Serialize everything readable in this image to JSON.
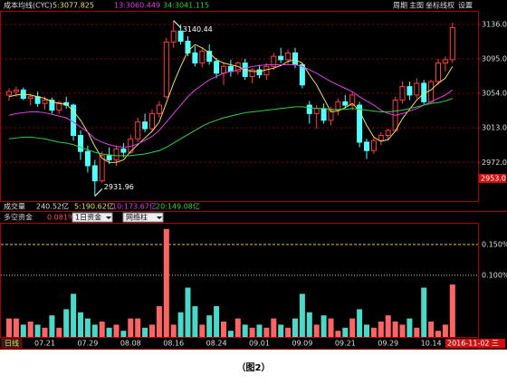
{
  "chart_data": [
    {
      "type": "candlestick",
      "title": "成本均线(CYC)",
      "toolbar": [
        "周期",
        "主图",
        "坐标线",
        "权",
        "设置"
      ],
      "open": [
        3052,
        3056,
        3058,
        3048,
        3050,
        3042,
        3046,
        3034,
        3043,
        3040,
        3004,
        2985,
        2968,
        2950,
        2980,
        2975,
        2988,
        2984,
        3000,
        3020,
        3012,
        3030,
        3050,
        3115,
        3128,
        3116,
        3102,
        3090,
        3104,
        3092,
        3078,
        3086,
        3080,
        3090,
        3074,
        3082,
        3076,
        3086,
        3098,
        3094,
        3102,
        3088,
        3040,
        3030,
        3036,
        3022,
        3034,
        3044,
        3040,
        3040,
        2996,
        2986,
        2998,
        3004,
        3010,
        3046,
        3062,
        3052,
        3066,
        3044,
        3068,
        3090,
        3094
      ],
      "high": [
        3060,
        3062,
        3061,
        3054,
        3056,
        3050,
        3049,
        3045,
        3050,
        3042,
        3010,
        2992,
        2975,
        2985,
        2990,
        2992,
        2995,
        3005,
        3025,
        3030,
        3035,
        3045,
        3120,
        3140.44,
        3136,
        3122,
        3110,
        3108,
        3112,
        3096,
        3090,
        3094,
        3092,
        3095,
        3084,
        3088,
        3090,
        3102,
        3108,
        3106,
        3108,
        3090,
        3045,
        3040,
        3042,
        3038,
        3048,
        3052,
        3056,
        3044,
        3000,
        3002,
        3008,
        3012,
        3050,
        3068,
        3068,
        3072,
        3070,
        3070,
        3095,
        3098,
        3138
      ],
      "low": [
        3045,
        3050,
        3046,
        3040,
        3038,
        3035,
        3030,
        3030,
        3036,
        2998,
        2975,
        2960,
        2931.96,
        2948,
        2970,
        2968,
        2978,
        2982,
        2996,
        3008,
        3008,
        3025,
        3048,
        3108,
        3112,
        3098,
        3086,
        3085,
        3088,
        3072,
        3064,
        3074,
        3076,
        3070,
        3066,
        3072,
        3070,
        3082,
        3090,
        3088,
        3084,
        3060,
        3018,
        3012,
        3018,
        3016,
        3028,
        3036,
        3034,
        2990,
        2976,
        2982,
        2992,
        2998,
        3008,
        3042,
        3046,
        3048,
        3040,
        3042,
        3064,
        3080,
        3090
      ],
      "close": [
        3056,
        3058,
        3048,
        3050,
        3042,
        3046,
        3034,
        3043,
        3040,
        3004,
        2985,
        2968,
        2950,
        2980,
        2975,
        2988,
        2984,
        3000,
        3020,
        3012,
        3030,
        3040,
        3115,
        3128,
        3116,
        3102,
        3090,
        3104,
        3092,
        3078,
        3086,
        3080,
        3090,
        3074,
        3082,
        3076,
        3086,
        3098,
        3094,
        3102,
        3088,
        3064,
        3030,
        3036,
        3022,
        3034,
        3044,
        3040,
        3052,
        2996,
        2986,
        2998,
        3004,
        3010,
        3046,
        3062,
        3052,
        3066,
        3044,
        3068,
        3090,
        3094,
        3132
      ],
      "up_color": "#ff3c3c",
      "down_color": "#54ffff",
      "series": [
        {
          "name": "5:3077.825",
          "color": "#e8e070",
          "values": [
            3050,
            3052,
            3053,
            3052,
            3050,
            3048,
            3044,
            3042,
            3041,
            3033,
            3022,
            3008,
            2991,
            2977,
            2972,
            2972,
            2975,
            2985,
            2993,
            3001,
            3009,
            3020,
            3043,
            3066,
            3086,
            3104,
            3112,
            3108,
            3102,
            3094,
            3090,
            3088,
            3086,
            3082,
            3080,
            3080,
            3082,
            3084,
            3087,
            3092,
            3094,
            3090,
            3076,
            3064,
            3048,
            3032,
            3033,
            3037,
            3042,
            3033,
            3016,
            3002,
            2997,
            2999,
            3009,
            3024,
            3035,
            3046,
            3054,
            3058,
            3066,
            3072,
            3086
          ]
        },
        {
          "name": "13:3060.449",
          "color": "#e040e0",
          "values": [
            3028,
            3030,
            3031,
            3032,
            3032,
            3031,
            3029,
            3027,
            3025,
            3020,
            3014,
            3008,
            3000,
            2996,
            2993,
            2991,
            2990,
            2991,
            2994,
            2998,
            3003,
            3010,
            3020,
            3030,
            3040,
            3050,
            3058,
            3064,
            3070,
            3074,
            3078,
            3080,
            3082,
            3084,
            3086,
            3087,
            3088,
            3088,
            3088,
            3088,
            3088,
            3086,
            3082,
            3078,
            3073,
            3068,
            3064,
            3060,
            3056,
            3050,
            3045,
            3040,
            3034,
            3030,
            3028,
            3030,
            3033,
            3036,
            3040,
            3044,
            3048,
            3052,
            3058
          ]
        },
        {
          "name": "34:3041.115",
          "color": "#30d040",
          "values": [
            3000,
            3001,
            3002,
            3002,
            3001,
            3000,
            2998,
            2996,
            2995,
            2993,
            2990,
            2987,
            2984,
            2982,
            2981,
            2980,
            2980,
            2980,
            2981,
            2982,
            2984,
            2986,
            2990,
            2995,
            3000,
            3005,
            3010,
            3015,
            3019,
            3022,
            3025,
            3027,
            3029,
            3031,
            3032,
            3033,
            3034,
            3035,
            3036,
            3037,
            3038,
            3038,
            3037,
            3036,
            3036,
            3035,
            3035,
            3035,
            3036,
            3035,
            3034,
            3033,
            3032,
            3032,
            3033,
            3034,
            3036,
            3038,
            3040,
            3042,
            3043,
            3045,
            3048
          ]
        }
      ],
      "ylim": [
        2926,
        3152
      ],
      "yticks": [
        {
          "value": 3136,
          "label": "3136.0"
        },
        {
          "value": 3095,
          "label": "3095.0"
        },
        {
          "value": 3054,
          "label": "3054.0"
        },
        {
          "value": 3013,
          "label": "3013.0"
        },
        {
          "value": 2972,
          "label": "2972.0"
        }
      ],
      "cursor": {
        "value": 2953,
        "label": "2953.0"
      },
      "grid": true
    },
    {
      "type": "bar",
      "volume_header": [
        "成交量",
        "240.52亿",
        "5:190.62亿",
        "10:173.67亿",
        "20:149.08亿"
      ],
      "title": "多空资金",
      "current": "0.081%",
      "selectors": [
        "1日资金",
        "网络柱"
      ],
      "values": [
        0.03,
        0.03,
        0.02,
        0.025,
        0.02,
        0.015,
        0.035,
        0.015,
        0.045,
        0.07,
        0.04,
        0.03,
        0.02,
        0.025,
        0.015,
        0.02,
        0.01,
        0.03,
        0.03,
        0.015,
        0.02,
        0.05,
        0.175,
        0.02,
        0.04,
        0.08,
        0.05,
        0.02,
        0.035,
        0.05,
        0.025,
        0.01,
        0.03,
        0.02,
        0.015,
        0.02,
        0.015,
        0.03,
        0.02,
        0.015,
        0.03,
        0.07,
        0.04,
        0.02,
        0.035,
        0.03,
        0.01,
        0.015,
        0.03,
        0.045,
        0.02,
        0.015,
        0.025,
        0.035,
        0.025,
        0.02,
        0.03,
        0.015,
        0.08,
        0.025,
        0.01,
        0.02,
        0.085
      ],
      "up_color": "#ff6464",
      "down_color": "#4cd8c8",
      "ylim": [
        0,
        0.185
      ],
      "yticks": [
        {
          "value": 0.15,
          "label": "0.150%"
        },
        {
          "value": 0.1,
          "label": "0.100%"
        }
      ],
      "categories": [
        null,
        null,
        null,
        null,
        null,
        "07.21",
        null,
        null,
        null,
        null,
        null,
        "07.29",
        null,
        null,
        null,
        null,
        null,
        "08.08",
        null,
        null,
        null,
        null,
        null,
        "08.16",
        null,
        null,
        null,
        null,
        null,
        "08.24",
        null,
        null,
        null,
        null,
        null,
        "09.01",
        null,
        null,
        null,
        null,
        null,
        "09.09",
        null,
        null,
        null,
        null,
        null,
        "09.21",
        null,
        null,
        null,
        null,
        null,
        "09.29",
        null,
        null,
        null,
        null,
        null,
        "10.14",
        null,
        null,
        null
      ],
      "period": "日线",
      "current_date": "2016-11-02 三"
    }
  ],
  "caption": "（图2）"
}
